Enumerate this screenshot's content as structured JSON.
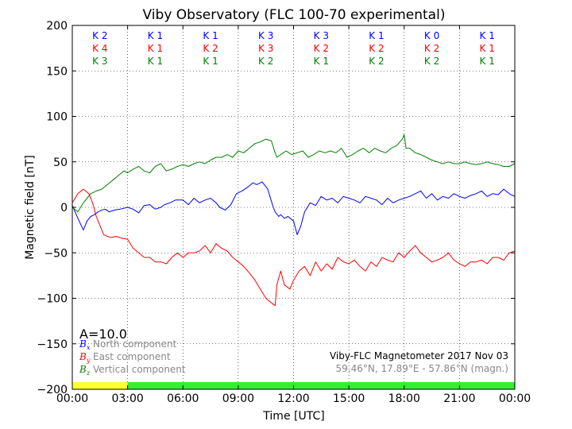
{
  "chart_data": {
    "type": "line",
    "title": "Viby Observatory (FLC 100-70 experimental)",
    "xlabel": "Time [UTC]",
    "ylabel": "Magnetic field [nT]",
    "xlim": [
      0,
      24
    ],
    "ylim": [
      -200,
      200
    ],
    "grid": true,
    "x_tick_labels": [
      "00:00",
      "03:00",
      "06:00",
      "09:00",
      "12:00",
      "15:00",
      "18:00",
      "21:00",
      "00:00"
    ],
    "y_ticks": [
      "200",
      "150",
      "100",
      "50",
      "0",
      "−50",
      "−100",
      "−150",
      "−200"
    ],
    "k_indices": [
      {
        "bx": "K 2",
        "by": "K 4",
        "bz": "K 3"
      },
      {
        "bx": "K 1",
        "by": "K 1",
        "bz": "K 1"
      },
      {
        "bx": "K 1",
        "by": "K 2",
        "bz": "K 1"
      },
      {
        "bx": "K 3",
        "by": "K 3",
        "bz": "K 2"
      },
      {
        "bx": "K 3",
        "by": "K 2",
        "bz": "K 1"
      },
      {
        "bx": "K 1",
        "by": "K 2",
        "bz": "K 2"
      },
      {
        "bx": "K 0",
        "by": "K 2",
        "bz": "K 2"
      },
      {
        "bx": "K 1",
        "by": "K 1",
        "bz": "K 1"
      }
    ],
    "a_index": "A=10.0",
    "legend": [
      {
        "symbol": "B",
        "sub": "x",
        "label": "North component",
        "color": "#0000ff"
      },
      {
        "symbol": "B",
        "sub": "y",
        "label": "East component",
        "color": "#ff0000"
      },
      {
        "symbol": "B",
        "sub": "z",
        "label": "Vertical component",
        "color": "#008000"
      }
    ],
    "info_line1": "Viby-FLC Magnetometer 2017 Nov 03",
    "info_line2": "59.46°N, 17.89°E - 57.86°N (magn.)",
    "activity_bar": [
      {
        "from": 0,
        "to": 3,
        "color": "#ffff33"
      },
      {
        "from": 3,
        "to": 24,
        "color": "#33ee33"
      }
    ],
    "series": [
      {
        "name": "North component",
        "color": "#0000ff",
        "x": [
          0,
          0.3,
          0.6,
          0.8,
          1.0,
          1.2,
          1.4,
          1.6,
          1.8,
          2.0,
          2.3,
          2.6,
          3.0,
          3.3,
          3.6,
          3.9,
          4.2,
          4.5,
          4.8,
          5.0,
          5.3,
          5.6,
          6.0,
          6.3,
          6.6,
          6.9,
          7.2,
          7.5,
          7.8,
          8.0,
          8.3,
          8.6,
          8.9,
          9.2,
          9.5,
          9.8,
          10.0,
          10.3,
          10.6,
          10.9,
          11.0,
          11.2,
          11.3,
          11.5,
          11.7,
          12.0,
          12.2,
          12.4,
          12.6,
          12.9,
          13.2,
          13.5,
          13.8,
          14.1,
          14.4,
          14.7,
          15.0,
          15.3,
          15.6,
          15.9,
          16.2,
          16.5,
          16.8,
          17.1,
          17.4,
          17.7,
          18.0,
          18.3,
          18.6,
          18.9,
          19.2,
          19.5,
          19.8,
          20.1,
          20.4,
          20.7,
          21.0,
          21.3,
          21.6,
          21.9,
          22.2,
          22.5,
          22.8,
          23.1,
          23.4,
          23.7,
          24.0
        ],
        "y": [
          2,
          -12,
          -25,
          -15,
          -10,
          -8,
          -5,
          -3,
          -2,
          -5,
          -3,
          -2,
          0,
          -2,
          -6,
          2,
          3,
          -2,
          0,
          3,
          5,
          8,
          8,
          3,
          10,
          5,
          8,
          10,
          5,
          0,
          -3,
          3,
          15,
          18,
          22,
          27,
          25,
          28,
          20,
          0,
          -5,
          -10,
          -8,
          -12,
          -10,
          -15,
          -30,
          -20,
          -5,
          5,
          2,
          12,
          8,
          10,
          5,
          12,
          10,
          8,
          5,
          12,
          10,
          8,
          3,
          10,
          5,
          8,
          10,
          12,
          15,
          18,
          10,
          15,
          8,
          12,
          10,
          15,
          12,
          10,
          13,
          15,
          18,
          12,
          15,
          14,
          20,
          15,
          12
        ]
      },
      {
        "name": "East component",
        "color": "#ff0000",
        "x": [
          0,
          0.3,
          0.6,
          0.9,
          1.1,
          1.3,
          1.5,
          1.7,
          1.9,
          2.1,
          2.4,
          2.7,
          3.0,
          3.3,
          3.6,
          3.9,
          4.2,
          4.5,
          4.8,
          5.1,
          5.4,
          5.7,
          6.0,
          6.3,
          6.6,
          6.9,
          7.2,
          7.5,
          7.8,
          8.1,
          8.4,
          8.7,
          9.0,
          9.3,
          9.6,
          9.9,
          10.2,
          10.5,
          10.8,
          11.0,
          11.1,
          11.3,
          11.5,
          11.8,
          12.0,
          12.3,
          12.6,
          12.9,
          13.2,
          13.5,
          13.8,
          14.1,
          14.4,
          14.7,
          15.0,
          15.3,
          15.6,
          15.9,
          16.2,
          16.5,
          16.8,
          17.1,
          17.4,
          17.7,
          18.0,
          18.3,
          18.6,
          18.9,
          19.2,
          19.5,
          19.8,
          20.1,
          20.4,
          20.7,
          21.0,
          21.3,
          21.6,
          21.9,
          22.2,
          22.5,
          22.8,
          23.1,
          23.4,
          23.7,
          24.0
        ],
        "y": [
          5,
          15,
          20,
          15,
          5,
          -10,
          -20,
          -30,
          -32,
          -33,
          -32,
          -34,
          -35,
          -45,
          -50,
          -55,
          -55,
          -60,
          -60,
          -62,
          -55,
          -50,
          -55,
          -50,
          -50,
          -48,
          -42,
          -50,
          -40,
          -45,
          -48,
          -55,
          -60,
          -65,
          -72,
          -80,
          -90,
          -100,
          -105,
          -108,
          -85,
          -70,
          -85,
          -90,
          -80,
          -70,
          -65,
          -75,
          -60,
          -70,
          -62,
          -68,
          -55,
          -60,
          -62,
          -58,
          -65,
          -70,
          -60,
          -65,
          -55,
          -58,
          -60,
          -50,
          -55,
          -48,
          -42,
          -50,
          -55,
          -60,
          -58,
          -55,
          -50,
          -58,
          -62,
          -65,
          -60,
          -60,
          -58,
          -62,
          -55,
          -55,
          -58,
          -50,
          -48
        ]
      },
      {
        "name": "Vertical component",
        "color": "#008000",
        "x": [
          0,
          0.3,
          0.6,
          0.8,
          1.0,
          1.3,
          1.6,
          1.9,
          2.2,
          2.5,
          2.8,
          3.0,
          3.3,
          3.6,
          3.9,
          4.2,
          4.5,
          4.8,
          5.1,
          5.4,
          5.7,
          6.0,
          6.3,
          6.6,
          6.9,
          7.2,
          7.5,
          7.8,
          8.1,
          8.4,
          8.7,
          9.0,
          9.3,
          9.6,
          9.9,
          10.2,
          10.5,
          10.8,
          11.0,
          11.1,
          11.3,
          11.6,
          11.9,
          12.2,
          12.5,
          12.8,
          13.1,
          13.4,
          13.7,
          14.0,
          14.3,
          14.6,
          14.9,
          15.2,
          15.5,
          15.8,
          16.1,
          16.4,
          16.7,
          17.0,
          17.3,
          17.6,
          17.9,
          18.0,
          18.1,
          18.3,
          18.6,
          18.9,
          19.2,
          19.5,
          19.8,
          20.1,
          20.4,
          20.7,
          21.0,
          21.3,
          21.6,
          21.9,
          22.2,
          22.5,
          22.8,
          23.1,
          23.4,
          23.7,
          24.0
        ],
        "y": [
          0,
          -5,
          5,
          10,
          15,
          18,
          20,
          25,
          30,
          35,
          40,
          38,
          42,
          45,
          40,
          38,
          45,
          48,
          40,
          42,
          45,
          47,
          45,
          48,
          50,
          48,
          52,
          55,
          55,
          58,
          55,
          62,
          60,
          65,
          70,
          72,
          75,
          73,
          60,
          55,
          58,
          62,
          58,
          60,
          62,
          55,
          58,
          62,
          60,
          62,
          60,
          65,
          55,
          58,
          62,
          65,
          60,
          65,
          62,
          60,
          65,
          68,
          75,
          80,
          65,
          65,
          60,
          58,
          55,
          52,
          50,
          48,
          50,
          48,
          48,
          50,
          48,
          47,
          48,
          50,
          48,
          47,
          45,
          45,
          48
        ]
      }
    ]
  }
}
